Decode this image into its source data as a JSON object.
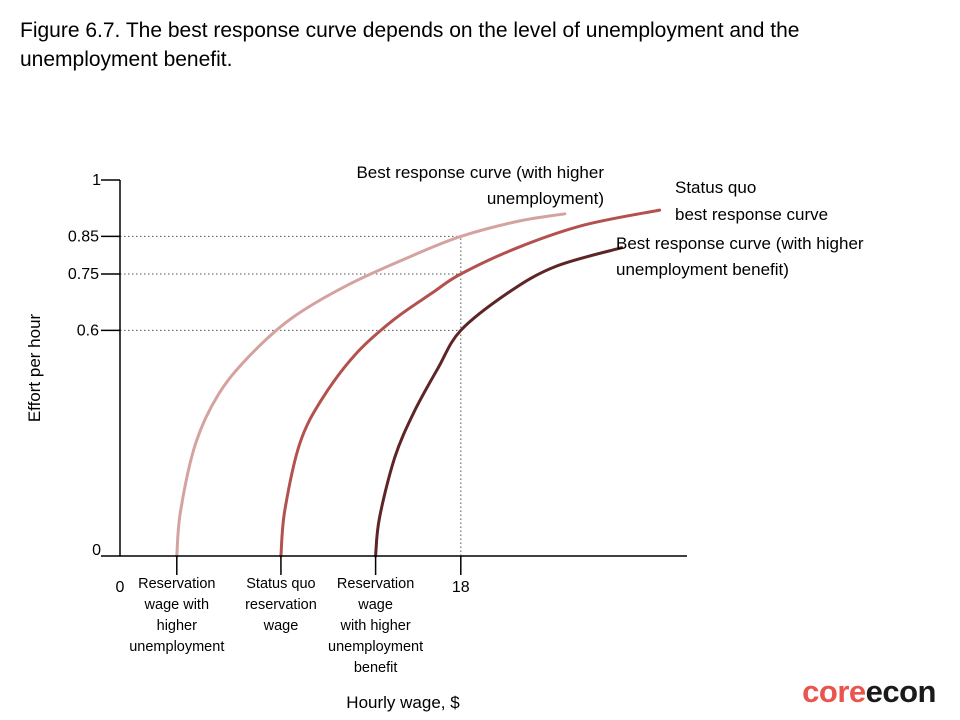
{
  "caption": "Figure 6.7. The best response curve depends on the level of unemployment and the unemployment benefit.",
  "logo": {
    "part1": "core",
    "part2": "econ"
  },
  "colors": {
    "axis": "#000000",
    "grid": "#555555"
  },
  "chart_data": {
    "type": "line",
    "xlabel": "Hourly wage, $",
    "ylabel": "Effort per hour",
    "xlim": [
      0,
      30
    ],
    "ylim": [
      0,
      1
    ],
    "x_ticks": [
      {
        "value": 0,
        "label": "0"
      },
      {
        "value": 18,
        "label": "18"
      }
    ],
    "y_ticks": [
      {
        "value": 0,
        "label": "0"
      },
      {
        "value": 0.6,
        "label": "0.6"
      },
      {
        "value": 0.75,
        "label": "0.75"
      },
      {
        "value": 0.85,
        "label": "0.85"
      },
      {
        "value": 1,
        "label": "1"
      }
    ],
    "x_categories": [
      {
        "value": 3,
        "lines": [
          "Reservation",
          "wage with",
          "higher",
          "unemployment"
        ]
      },
      {
        "value": 8.5,
        "lines": [
          "Status quo",
          "reservation",
          "wage"
        ]
      },
      {
        "value": 13.5,
        "lines": [
          "Reservation",
          "wage",
          "with higher",
          "unemployment",
          "benefit"
        ]
      }
    ],
    "reference_lines": [
      {
        "y": 0.85,
        "x_end": 18
      },
      {
        "y": 0.75,
        "x_end": 18
      },
      {
        "y": 0.6,
        "x_end": 18
      },
      {
        "x": 18,
        "y_end": 0.85
      }
    ],
    "series": [
      {
        "name_lines": [
          "Best response curve (with higher",
          "unemployment)"
        ],
        "color": "#d4a3a0",
        "x": [
          3,
          3.2,
          4.0,
          5.2,
          6.8,
          9.0,
          12.0,
          15.5,
          18.0,
          21.0,
          23.5
        ],
        "y": [
          0,
          0.12,
          0.3,
          0.43,
          0.53,
          0.63,
          0.72,
          0.8,
          0.85,
          0.89,
          0.91
        ]
      },
      {
        "name_lines": [
          "Status quo",
          "best response curve"
        ],
        "color": "#b3514e",
        "x": [
          8.5,
          8.7,
          9.5,
          10.7,
          12.5,
          14.5,
          16.5,
          18.0,
          21.0,
          24.5,
          28.5
        ],
        "y": [
          0,
          0.12,
          0.3,
          0.42,
          0.54,
          0.63,
          0.7,
          0.75,
          0.82,
          0.88,
          0.92
        ]
      },
      {
        "name_lines": [
          "Best response curve (with higher",
          "unemployment benefit)"
        ],
        "color": "#5e2426",
        "x": [
          13.5,
          13.7,
          14.5,
          15.5,
          16.8,
          18.0,
          20.5,
          23.0,
          26.5
        ],
        "y": [
          0,
          0.1,
          0.26,
          0.38,
          0.5,
          0.6,
          0.7,
          0.77,
          0.82
        ]
      }
    ]
  }
}
